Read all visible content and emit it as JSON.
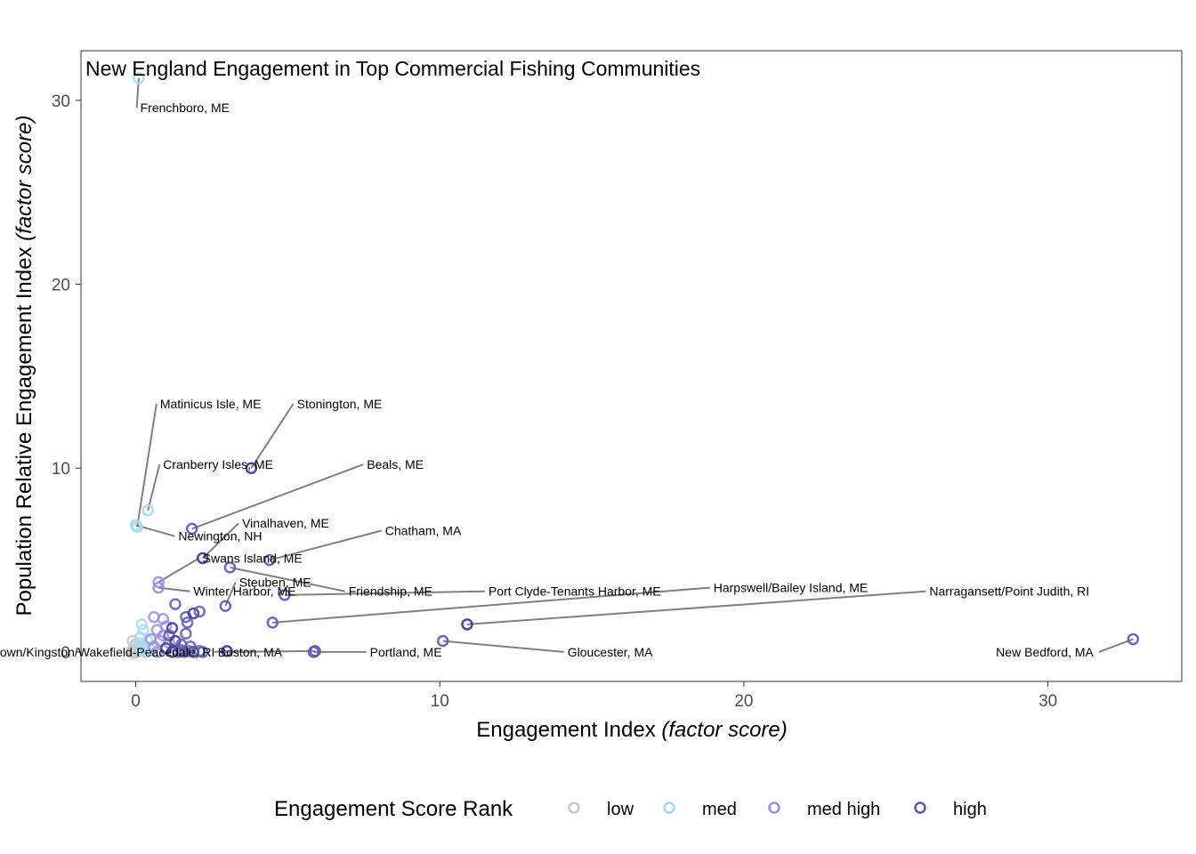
{
  "chart_data": {
    "type": "scatter",
    "title": "New England Engagement in Top Commercial Fishing Communities",
    "xlabel_main": "Engagement Index ",
    "xlabel_italic": "(factor score)",
    "ylabel_main": "Population Relative Engagement Index ",
    "ylabel_italic": "(factor score)",
    "xlim": [
      -1.8,
      34.4
    ],
    "ylim": [
      -1.6,
      32.7
    ],
    "x_ticks": [
      0,
      10,
      20,
      30
    ],
    "y_ticks": [
      0,
      10,
      20,
      30
    ],
    "grid": false,
    "legend": {
      "position": "bottom",
      "title": "Engagement Score Rank",
      "entries": [
        {
          "label": "low",
          "color": "#c8c8c8"
        },
        {
          "label": "med",
          "color": "#a8d8f0"
        },
        {
          "label": "med high",
          "color": "#9a8fd6"
        },
        {
          "label": "high",
          "color": "#5d5aa8"
        }
      ]
    },
    "colors": {
      "low": "#c8c8c8",
      "med": "#a8d8f0",
      "med high": "#9a8fd6",
      "high": "#5d5aa8",
      "high_dark": "#3a3590"
    },
    "labeled_points": [
      {
        "label": "Frenchboro, ME",
        "x": 0.1,
        "y": 31.2,
        "rank": "med",
        "lx": 0.15,
        "ly": 29.6
      },
      {
        "label": "Matinicus Isle, ME",
        "x": 0.05,
        "y": 6.8,
        "rank": "med",
        "lx": 0.8,
        "ly": 13.5
      },
      {
        "label": "Stonington, ME",
        "x": 3.8,
        "y": 10.0,
        "rank": "high",
        "lx": 5.3,
        "ly": 13.5
      },
      {
        "label": "Cranberry Isles, ME",
        "x": 0.4,
        "y": 7.7,
        "rank": "med",
        "lx": 0.9,
        "ly": 10.2
      },
      {
        "label": "Beals, ME",
        "x": 1.85,
        "y": 6.7,
        "rank": "high",
        "lx": 7.6,
        "ly": 10.2
      },
      {
        "label": "Vinalhaven, ME",
        "x": 2.2,
        "y": 5.1,
        "rank": "high",
        "lx": 3.5,
        "ly": 7.0
      },
      {
        "label": "Newington, NH",
        "x": 0.0,
        "y": 6.9,
        "rank": "med",
        "lx": 1.4,
        "ly": 6.3
      },
      {
        "label": "Chatham, MA",
        "x": 4.4,
        "y": 5.0,
        "rank": "high",
        "lx": 8.2,
        "ly": 6.6
      },
      {
        "label": "Swans Island, ME",
        "x": 0.75,
        "y": 3.8,
        "rank": "med high",
        "lx": 2.2,
        "ly": 5.1
      },
      {
        "label": "Steuben, ME",
        "x": 2.95,
        "y": 2.5,
        "rank": "high",
        "lx": 3.4,
        "ly": 3.8
      },
      {
        "label": "Friendship, ME",
        "x": 3.1,
        "y": 4.6,
        "rank": "high",
        "lx": 7.0,
        "ly": 3.3
      },
      {
        "label": "Winter Harbor, ME",
        "x": 0.75,
        "y": 3.5,
        "rank": "med high",
        "lx": 1.9,
        "ly": 3.3
      },
      {
        "label": "Port Clyde-Tenants Harbor, ME",
        "x": 4.9,
        "y": 3.1,
        "rank": "high",
        "lx": 11.6,
        "ly": 3.3
      },
      {
        "label": "Harpswell/Bailey Island, ME",
        "x": 4.5,
        "y": 1.6,
        "rank": "high",
        "lx": 19.0,
        "ly": 3.5
      },
      {
        "label": "Narragansett/Point Judith, RI",
        "x": 10.9,
        "y": 1.5,
        "rank": "high",
        "lx": 26.1,
        "ly": 3.3
      },
      {
        "label": "Gloucester, MA",
        "x": 10.1,
        "y": 0.6,
        "rank": "high",
        "lx": 14.2,
        "ly": 0.0
      },
      {
        "label": "New Bedford, MA",
        "x": 32.8,
        "y": 0.7,
        "rank": "high",
        "lx": 31.5,
        "ly": 0.0
      },
      {
        "label": "Boston, MA",
        "x": 3.0,
        "y": 0.05,
        "rank": "high",
        "lx": 2.7,
        "ly": 0.0
      },
      {
        "label": "South Kingstown/Kingston/Wakefield-Peacedale, RI",
        "x": 5.9,
        "y": 0.05,
        "rank": "high",
        "lx": 2.6,
        "ly": 0.0
      },
      {
        "label": "Portland, ME",
        "x": 5.85,
        "y": 0.0,
        "rank": "high",
        "lx": 7.7,
        "ly": 0.0
      }
    ],
    "other_points": [
      {
        "x": 0.0,
        "y": 0.0,
        "rank": "low"
      },
      {
        "x": -0.1,
        "y": 0.1,
        "rank": "low"
      },
      {
        "x": -0.05,
        "y": 0.3,
        "rank": "low"
      },
      {
        "x": -0.1,
        "y": 0.6,
        "rank": "low"
      },
      {
        "x": 0.05,
        "y": 0.0,
        "rank": "low"
      },
      {
        "x": 0.1,
        "y": 0.2,
        "rank": "low"
      },
      {
        "x": -0.15,
        "y": 0.0,
        "rank": "low"
      },
      {
        "x": 0.0,
        "y": 0.45,
        "rank": "low"
      },
      {
        "x": 0.15,
        "y": 0.05,
        "rank": "low"
      },
      {
        "x": -0.05,
        "y": -0.05,
        "rank": "low"
      },
      {
        "x": 0.2,
        "y": 0.1,
        "rank": "med"
      },
      {
        "x": 0.3,
        "y": 0.3,
        "rank": "med"
      },
      {
        "x": 0.15,
        "y": 0.8,
        "rank": "med"
      },
      {
        "x": 0.25,
        "y": 1.2,
        "rank": "med"
      },
      {
        "x": 0.2,
        "y": 1.5,
        "rank": "med"
      },
      {
        "x": 0.35,
        "y": 0.0,
        "rank": "med"
      },
      {
        "x": 0.1,
        "y": 0.5,
        "rank": "med"
      },
      {
        "x": 0.4,
        "y": 0.6,
        "rank": "med"
      },
      {
        "x": 0.3,
        "y": 0.0,
        "rank": "med"
      },
      {
        "x": 0.5,
        "y": 0.1,
        "rank": "med"
      },
      {
        "x": 0.2,
        "y": 0.3,
        "rank": "med"
      },
      {
        "x": 0.6,
        "y": 1.9,
        "rank": "med high"
      },
      {
        "x": 0.9,
        "y": 1.8,
        "rank": "med high"
      },
      {
        "x": 0.7,
        "y": 1.2,
        "rank": "med high"
      },
      {
        "x": 0.8,
        "y": 0.6,
        "rank": "med high"
      },
      {
        "x": 0.6,
        "y": 0.3,
        "rank": "med high"
      },
      {
        "x": 1.0,
        "y": 1.4,
        "rank": "med high"
      },
      {
        "x": 0.9,
        "y": 0.9,
        "rank": "med high"
      },
      {
        "x": 0.7,
        "y": 0.0,
        "rank": "med high"
      },
      {
        "x": 1.1,
        "y": 0.5,
        "rank": "med high"
      },
      {
        "x": 0.5,
        "y": 0.7,
        "rank": "med high"
      },
      {
        "x": 1.3,
        "y": 2.6,
        "rank": "high"
      },
      {
        "x": 1.65,
        "y": 1.9,
        "rank": "high"
      },
      {
        "x": 1.9,
        "y": 2.1,
        "rank": "high"
      },
      {
        "x": 2.1,
        "y": 2.2,
        "rank": "high"
      },
      {
        "x": 1.7,
        "y": 1.6,
        "rank": "high"
      },
      {
        "x": 1.2,
        "y": 1.3,
        "rank": "high"
      },
      {
        "x": 1.65,
        "y": 1.0,
        "rank": "high"
      },
      {
        "x": 1.1,
        "y": 0.9,
        "rank": "high"
      },
      {
        "x": 1.3,
        "y": 0.6,
        "rank": "high"
      },
      {
        "x": 1.5,
        "y": 0.4,
        "rank": "high"
      },
      {
        "x": 1.8,
        "y": 0.3,
        "rank": "high"
      },
      {
        "x": 1.2,
        "y": 0.0,
        "rank": "high"
      },
      {
        "x": 1.4,
        "y": 0.0,
        "rank": "high"
      },
      {
        "x": 1.6,
        "y": 0.0,
        "rank": "high"
      },
      {
        "x": 1.9,
        "y": 0.0,
        "rank": "high"
      },
      {
        "x": 2.1,
        "y": 0.05,
        "rank": "high"
      },
      {
        "x": 2.2,
        "y": 0.0,
        "rank": "high"
      },
      {
        "x": 1.0,
        "y": 0.2,
        "rank": "high"
      },
      {
        "x": 1.5,
        "y": 0.1,
        "rank": "high"
      },
      {
        "x": 1.75,
        "y": 0.05,
        "rank": "high"
      }
    ]
  }
}
